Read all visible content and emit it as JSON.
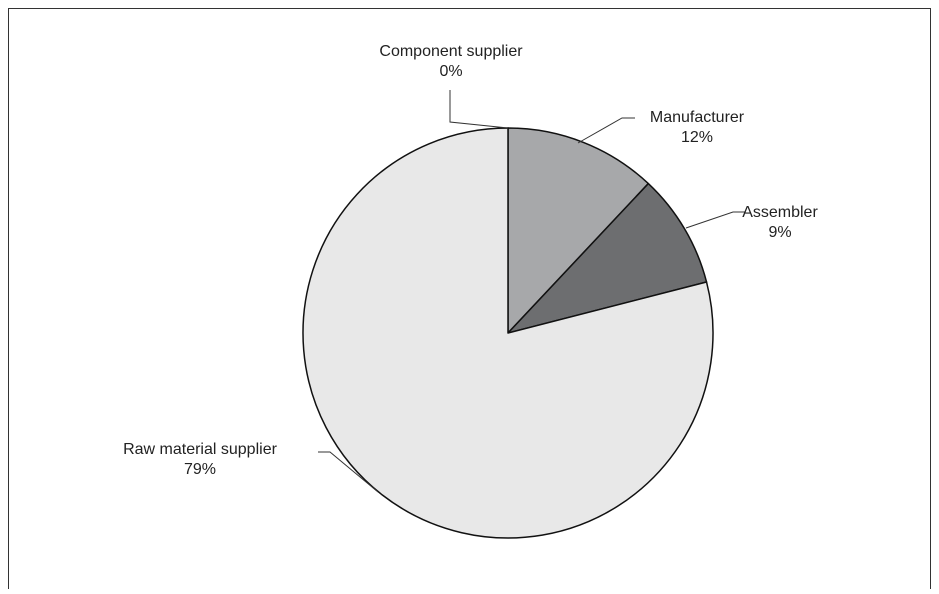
{
  "chart_data": {
    "type": "pie",
    "categories": [
      "Component supplier",
      "Manufacturer",
      "Assembler",
      "Raw material supplier"
    ],
    "values": [
      0,
      12,
      9,
      79
    ],
    "value_labels": [
      "0%",
      "12%",
      "9%",
      "79%"
    ],
    "colors": [
      "#c8c8c8",
      "#a7a8aa",
      "#6d6e70",
      "#e8e8e8"
    ]
  }
}
